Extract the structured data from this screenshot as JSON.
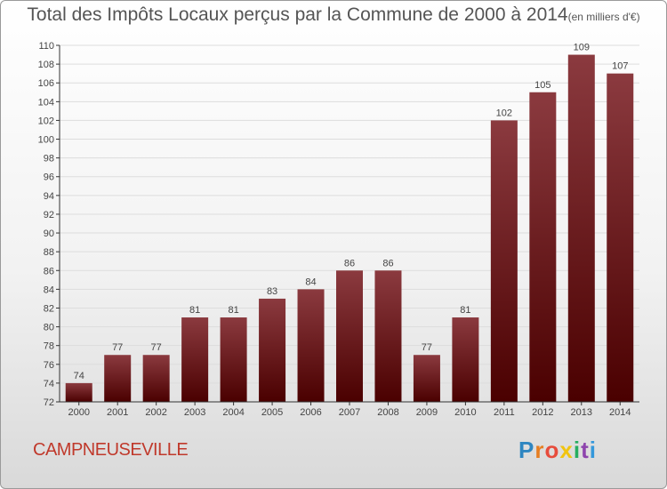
{
  "header": {
    "title": "Total des Impôts Locaux perçus par la Commune de 2000 à 2014",
    "unit": "(en milliers d'€)"
  },
  "footer": {
    "commune": "CAMPNEUSEVILLE",
    "logo_letters": [
      "P",
      "r",
      "o",
      "x",
      "i",
      "t",
      "i"
    ],
    "logo_colors": [
      "#2e86c1",
      "#e67e22",
      "#e74c3c",
      "#f1c40f",
      "#27ae60",
      "#8e44ad",
      "#3498db"
    ]
  },
  "colors": {
    "bar_top": "#8b3a3f",
    "bar_bottom": "#4a0000",
    "axis": "#333333",
    "grid": "#dddddd",
    "text": "#444444"
  },
  "chart_data": {
    "type": "bar",
    "title": "Total des Impôts Locaux perçus par la Commune de 2000 à 2014 (en milliers d'€)",
    "xlabel": "",
    "ylabel": "",
    "categories": [
      "2000",
      "2001",
      "2002",
      "2003",
      "2004",
      "2005",
      "2006",
      "2007",
      "2008",
      "2009",
      "2010",
      "2011",
      "2012",
      "2013",
      "2014"
    ],
    "values": [
      74,
      77,
      77,
      81,
      81,
      83,
      84,
      86,
      86,
      77,
      81,
      102,
      105,
      109,
      107
    ],
    "ylim": [
      72,
      110
    ],
    "yticks": [
      72,
      74,
      76,
      78,
      80,
      82,
      84,
      86,
      88,
      90,
      92,
      94,
      96,
      98,
      100,
      102,
      104,
      106,
      108,
      110
    ],
    "grid": true
  }
}
